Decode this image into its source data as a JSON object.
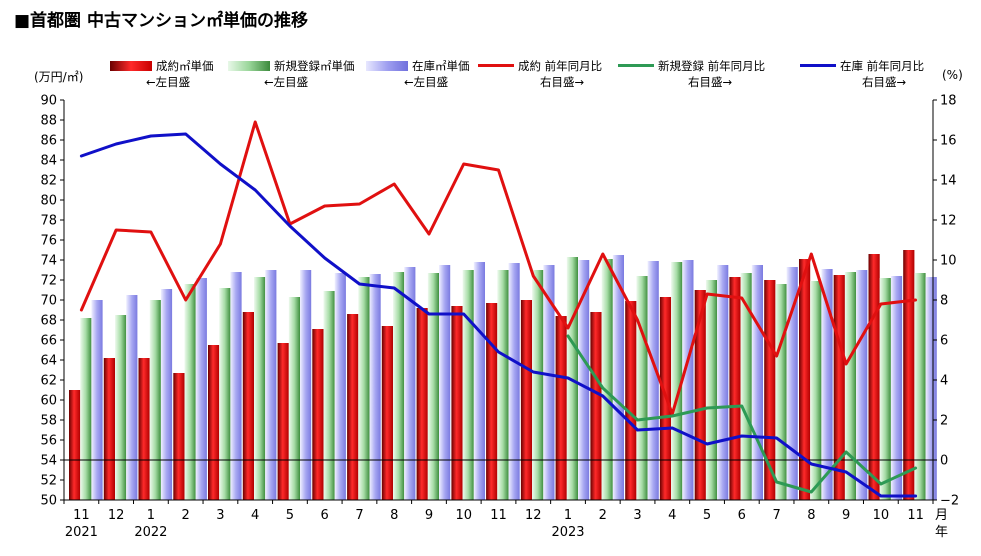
{
  "title": "■首都圏 中古マンション㎡単価の推移",
  "units": {
    "left": "(万円/㎡)",
    "right": "(%)"
  },
  "axis_suffix": {
    "month": "月",
    "year": "年"
  },
  "legend": [
    {
      "kind": "bar",
      "label": "成約㎡単価",
      "note": "←左目盛",
      "color": "#d40000"
    },
    {
      "kind": "bar",
      "label": "新規登録㎡単価",
      "note": "←左目盛",
      "color": "#8fcf8f"
    },
    {
      "kind": "bar",
      "label": "在庫㎡単価",
      "note": "←左目盛",
      "color": "#9999ee"
    },
    {
      "kind": "line",
      "label": "成約 前年同月比",
      "note": "右目盛→",
      "color": "#e01010"
    },
    {
      "kind": "line",
      "label": "新規登録 前年同月比",
      "note": "右目盛→",
      "color": "#2e9a55"
    },
    {
      "kind": "line",
      "label": "在庫 前年同月比",
      "note": "右目盛→",
      "color": "#1010c8"
    }
  ],
  "chart_data": {
    "type": "bar",
    "categories": [
      "11",
      "12",
      "1",
      "2",
      "3",
      "4",
      "5",
      "6",
      "7",
      "8",
      "9",
      "10",
      "11",
      "12",
      "1",
      "2",
      "3",
      "4",
      "5",
      "6",
      "7",
      "8",
      "9",
      "10",
      "11"
    ],
    "year_labels": [
      {
        "index": 0,
        "label": "2021"
      },
      {
        "index": 2,
        "label": "2022"
      },
      {
        "index": 14,
        "label": "2023"
      }
    ],
    "left_axis": {
      "ylim": [
        50,
        90
      ],
      "ticks": [
        50,
        52,
        54,
        56,
        58,
        60,
        62,
        64,
        66,
        68,
        70,
        72,
        74,
        76,
        78,
        80,
        82,
        84,
        86,
        88,
        90
      ]
    },
    "right_axis": {
      "ylim": [
        -2,
        18
      ],
      "ticks": [
        -2,
        0,
        2,
        4,
        6,
        8,
        10,
        12,
        14,
        16,
        18
      ],
      "tick_labels": [
        "−2",
        "0",
        "2",
        "4",
        "6",
        "8",
        "10",
        "12",
        "14",
        "16",
        "18"
      ]
    },
    "bar_series": [
      {
        "name": "成約㎡単価",
        "color": "#d40000",
        "values": [
          61.0,
          64.2,
          64.2,
          62.7,
          65.5,
          68.8,
          65.7,
          67.1,
          68.6,
          67.4,
          69.2,
          69.4,
          69.7,
          70.0,
          68.4,
          68.8,
          69.9,
          70.3,
          71.0,
          72.3,
          72.0,
          74.1,
          72.5,
          74.6,
          75.0
        ]
      },
      {
        "name": "新規登録㎡単価",
        "color": "#8fcf8f",
        "values": [
          68.2,
          68.5,
          70.0,
          71.6,
          71.2,
          72.3,
          70.3,
          70.9,
          72.3,
          72.8,
          72.7,
          73.0,
          73.0,
          73.0,
          74.3,
          74.1,
          72.4,
          73.8,
          72.0,
          72.7,
          71.6,
          71.9,
          72.8,
          72.2,
          72.7
        ]
      },
      {
        "name": "在庫㎡単価",
        "color": "#9999ee",
        "values": [
          70.0,
          70.5,
          71.1,
          72.2,
          72.8,
          73.0,
          73.0,
          72.7,
          72.6,
          73.3,
          73.5,
          73.8,
          73.7,
          73.5,
          74.0,
          74.5,
          73.9,
          74.0,
          73.5,
          73.5,
          73.3,
          73.1,
          73.0,
          72.4,
          72.3
        ]
      }
    ],
    "line_series": [
      {
        "name": "成約 前年同月比",
        "color": "#e01010",
        "values": [
          7.5,
          11.5,
          11.4,
          8.0,
          10.8,
          16.9,
          11.8,
          12.7,
          12.8,
          13.8,
          11.3,
          14.8,
          14.5,
          9.2,
          6.6,
          10.3,
          7.0,
          2.3,
          8.3,
          8.1,
          5.2,
          10.3,
          4.8,
          7.8,
          8.0
        ]
      },
      {
        "name": "新規登録 前年同月比",
        "color": "#2e9a55",
        "values": [
          null,
          null,
          null,
          null,
          null,
          null,
          null,
          null,
          null,
          null,
          null,
          null,
          null,
          null,
          6.2,
          3.6,
          2.0,
          2.2,
          2.6,
          2.7,
          -1.1,
          -1.6,
          0.4,
          -1.2,
          -0.4
        ]
      },
      {
        "name": "在庫 前年同月比",
        "color": "#1010c8",
        "values": [
          15.2,
          15.8,
          16.2,
          16.3,
          14.8,
          13.5,
          11.7,
          10.1,
          8.8,
          8.6,
          7.3,
          7.3,
          5.4,
          4.4,
          4.1,
          3.2,
          1.5,
          1.6,
          0.8,
          1.2,
          1.1,
          -0.2,
          -0.6,
          -1.8,
          -1.8
        ]
      }
    ],
    "grid": false
  }
}
